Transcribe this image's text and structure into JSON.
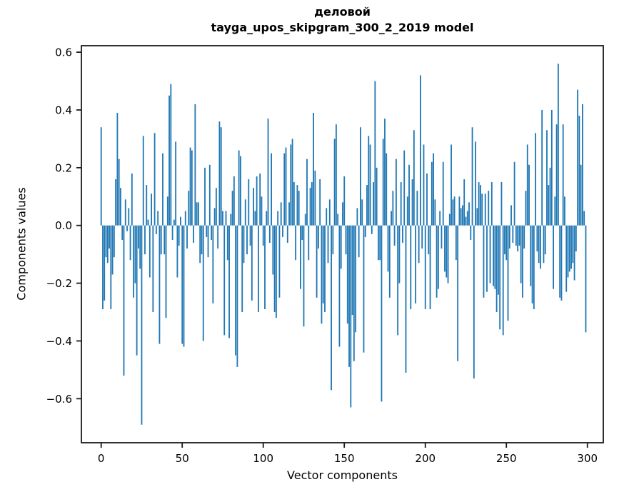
{
  "figure": {
    "title_line1": "деловой",
    "title_line2": "tayga_upos_skipgram_300_2_2019 model"
  },
  "chart_data": {
    "type": "bar",
    "title": "деловой — tayga_upos_skipgram_300_2_2019 model",
    "xlabel": "Vector components",
    "ylabel": "Components values",
    "bar_color": "#1f77b4",
    "axis_color": "#1a1a1a",
    "grid": false,
    "legend": null,
    "xlim": [
      -12.2,
      309.8
    ],
    "ylim": [
      -0.7525,
      0.6225
    ],
    "xticks": {
      "values": [
        0,
        50,
        100,
        150,
        200,
        250,
        300
      ],
      "labels": [
        "0",
        "50",
        "100",
        "150",
        "200",
        "250",
        "300"
      ]
    },
    "yticks": {
      "values": [
        0.6,
        0.4,
        0.2,
        0.0,
        -0.2,
        -0.4,
        -0.6
      ],
      "labels": [
        "0.6",
        "0.4",
        "0.2",
        "0.0",
        "−0.2",
        "−0.4",
        "−0.6"
      ]
    },
    "categories_note": "x = vector component index 0..299",
    "values": [
      0.34,
      -0.29,
      -0.26,
      -0.11,
      -0.13,
      -0.08,
      -0.29,
      -0.17,
      -0.11,
      0.16,
      0.39,
      0.23,
      0.13,
      -0.05,
      -0.52,
      0.09,
      -0.02,
      0.06,
      -0.12,
      0.18,
      -0.25,
      -0.2,
      -0.45,
      -0.08,
      -0.15,
      -0.69,
      0.31,
      -0.1,
      0.14,
      0.02,
      -0.18,
      0.11,
      -0.3,
      0.32,
      -0.03,
      0.05,
      -0.41,
      -0.1,
      0.25,
      -0.1,
      -0.32,
      0.1,
      0.45,
      0.49,
      -0.05,
      0.02,
      0.29,
      -0.18,
      -0.07,
      0.03,
      -0.41,
      -0.42,
      0.05,
      -0.08,
      0.12,
      0.27,
      0.26,
      -0.06,
      0.42,
      0.08,
      0.08,
      -0.13,
      -0.1,
      -0.4,
      0.2,
      -0.04,
      -0.11,
      0.21,
      -0.05,
      -0.27,
      0.06,
      0.13,
      -0.08,
      0.36,
      0.34,
      0.05,
      -0.38,
      0.05,
      -0.12,
      -0.39,
      0.04,
      0.12,
      0.17,
      -0.45,
      -0.49,
      0.26,
      0.24,
      -0.3,
      -0.13,
      0.09,
      -0.1,
      0.16,
      -0.07,
      -0.26,
      0.13,
      0.05,
      0.17,
      -0.3,
      0.18,
      0.1,
      -0.07,
      -0.29,
      0.05,
      0.37,
      -0.06,
      0.25,
      -0.17,
      -0.3,
      -0.32,
      0.05,
      -0.25,
      0.08,
      -0.04,
      0.25,
      0.27,
      -0.06,
      0.08,
      0.28,
      0.3,
      0.15,
      -0.12,
      0.14,
      0.12,
      -0.22,
      -0.05,
      -0.35,
      0.04,
      0.23,
      -0.12,
      0.13,
      0.15,
      0.39,
      0.19,
      -0.25,
      -0.08,
      0.16,
      -0.34,
      -0.27,
      -0.3,
      0.06,
      -0.13,
      0.09,
      -0.57,
      -0.1,
      0.3,
      0.35,
      0.04,
      -0.42,
      -0.15,
      0.08,
      0.17,
      -0.1,
      -0.34,
      -0.49,
      -0.63,
      -0.31,
      -0.47,
      -0.37,
      0.06,
      -0.11,
      0.34,
      0.09,
      -0.44,
      -0.04,
      0.14,
      0.31,
      0.28,
      -0.03,
      0.15,
      0.5,
      0.2,
      -0.12,
      -0.12,
      -0.61,
      0.3,
      0.37,
      0.25,
      -0.16,
      -0.25,
      0.05,
      0.12,
      -0.07,
      0.23,
      -0.38,
      -0.2,
      0.15,
      -0.06,
      0.26,
      -0.51,
      0.1,
      0.21,
      -0.29,
      0.16,
      0.33,
      -0.27,
      0.12,
      -0.13,
      0.52,
      -0.08,
      0.28,
      -0.29,
      0.18,
      -0.1,
      -0.29,
      0.22,
      0.25,
      0.09,
      -0.25,
      -0.22,
      0.05,
      -0.08,
      0.22,
      -0.16,
      -0.18,
      -0.2,
      0.04,
      0.28,
      0.09,
      0.1,
      -0.12,
      -0.47,
      0.1,
      0.06,
      0.07,
      0.16,
      0.03,
      0.05,
      0.08,
      -0.05,
      0.34,
      -0.53,
      0.29,
      0.06,
      0.15,
      0.14,
      0.11,
      -0.25,
      0.11,
      -0.23,
      0.12,
      -0.2,
      0.15,
      -0.21,
      -0.22,
      -0.3,
      -0.24,
      -0.36,
      0.15,
      -0.38,
      -0.1,
      -0.12,
      -0.33,
      -0.08,
      0.07,
      -0.06,
      0.22,
      -0.07,
      -0.09,
      -0.07,
      -0.2,
      -0.25,
      -0.08,
      0.12,
      0.28,
      0.21,
      -0.21,
      -0.27,
      -0.29,
      0.32,
      -0.09,
      -0.13,
      -0.15,
      0.4,
      -0.13,
      -0.1,
      0.33,
      0.14,
      0.2,
      0.4,
      -0.22,
      0.1,
      0.35,
      0.56,
      -0.25,
      -0.26,
      0.35,
      0.1,
      -0.23,
      -0.18,
      -0.16,
      -0.15,
      -0.13,
      -0.19,
      -0.09,
      0.47,
      0.38,
      0.21,
      0.42,
      0.05,
      -0.37
    ]
  }
}
